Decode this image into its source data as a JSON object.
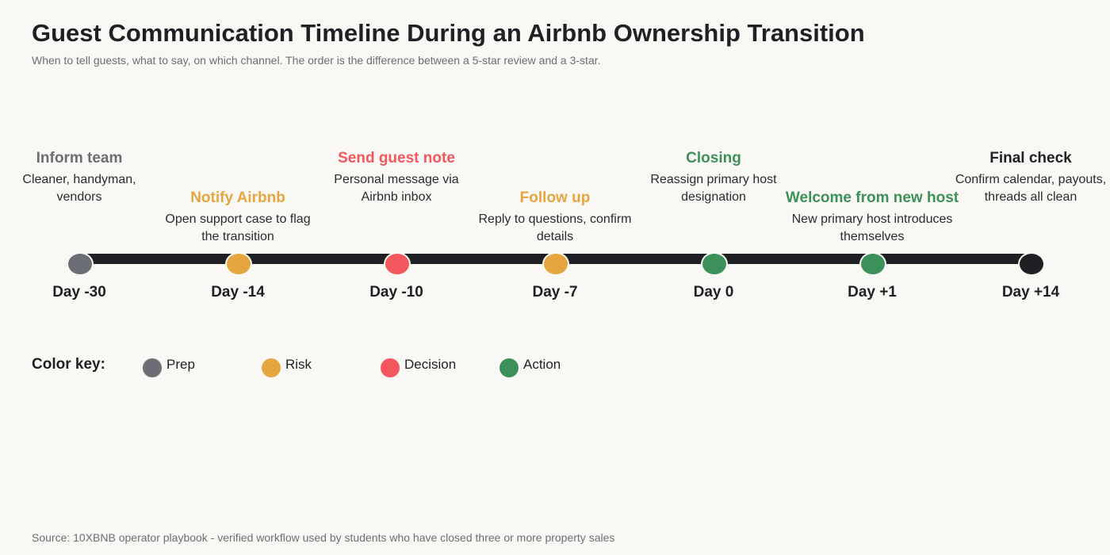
{
  "header": {
    "title": "Guest Communication Timeline During an Airbnb Ownership Transition",
    "subtitle": "When to tell guests, what to say, on which channel. The order is the difference between a 5-star review and a 3-star."
  },
  "timeline": {
    "events": [
      {
        "day": "Day -30",
        "title": "Inform team",
        "desc": "Cleaner, handyman, vendors",
        "category": "prep"
      },
      {
        "day": "Day -14",
        "title": "Notify Airbnb",
        "desc": "Open support case to flag the transition",
        "category": "risk"
      },
      {
        "day": "Day -10",
        "title": "Send guest note",
        "desc": "Personal message via Airbnb inbox",
        "category": "decision"
      },
      {
        "day": "Day -7",
        "title": "Follow up",
        "desc": "Reply to questions, confirm details",
        "category": "risk"
      },
      {
        "day": "Day 0",
        "title": "Closing",
        "desc": "Reassign primary host designation",
        "category": "action"
      },
      {
        "day": "Day +1",
        "title": "Welcome from new host",
        "desc": "New primary host introduces themselves",
        "category": "action"
      },
      {
        "day": "Day +14",
        "title": "Final check",
        "desc": "Confirm calendar, payouts, threads all clean",
        "category": "final"
      }
    ]
  },
  "legend": {
    "label": "Color key:",
    "items": [
      {
        "label": "Prep",
        "color": "#6b6e74"
      },
      {
        "label": "Risk",
        "color": "#e5a63f"
      },
      {
        "label": "Decision",
        "color": "#f2575e"
      },
      {
        "label": "Action",
        "color": "#3b9159"
      }
    ]
  },
  "colors": {
    "prep": "#6b6e74",
    "risk": "#e5a63f",
    "decision": "#f2575e",
    "action": "#3b9159",
    "final": "#1f2024",
    "track": "#1f2024"
  },
  "footer": {
    "source": "Source: 10XBNB operator playbook - verified workflow used by students who have closed three or more property sales"
  }
}
